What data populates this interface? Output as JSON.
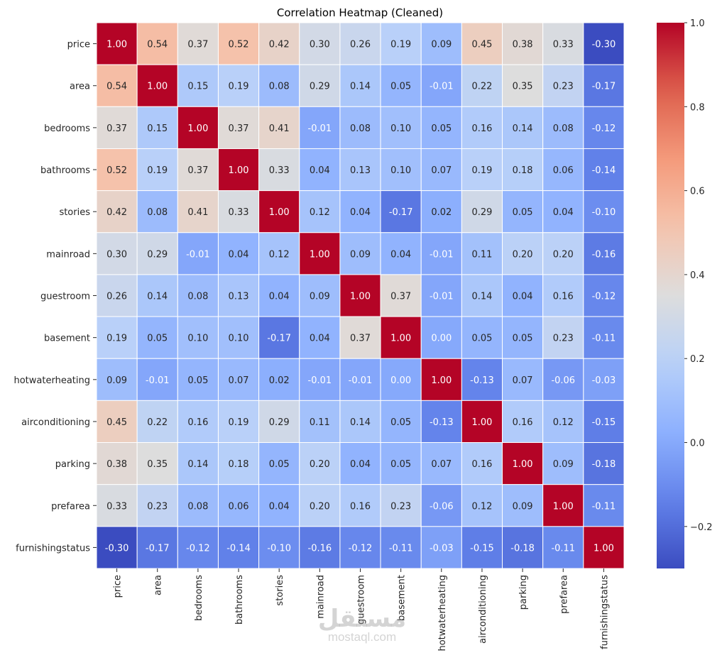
{
  "chart_data": {
    "type": "heatmap",
    "title": "Correlation Heatmap (Cleaned)",
    "xlabel": "",
    "ylabel": "",
    "colormap": "coolwarm",
    "value_range": [
      -0.3,
      1.0
    ],
    "colorbar": {
      "ticks": [
        1.0,
        0.8,
        0.6,
        0.4,
        0.2,
        0.0,
        -0.2
      ],
      "tick_labels": [
        "1.0",
        "0.8",
        "0.6",
        "0.4",
        "0.2",
        "0.0",
        "−0.2"
      ],
      "placement": "right"
    },
    "annotation_format": "2 decimals",
    "x_labels": [
      "price",
      "area",
      "bedrooms",
      "bathrooms",
      "stories",
      "mainroad",
      "guestroom",
      "basement",
      "hotwaterheating",
      "airconditioning",
      "parking",
      "prefarea",
      "furnishingstatus"
    ],
    "y_labels": [
      "price",
      "area",
      "bedrooms",
      "bathrooms",
      "stories",
      "mainroad",
      "guestroom",
      "basement",
      "hotwaterheating",
      "airconditioning",
      "parking",
      "prefarea",
      "furnishingstatus"
    ],
    "matrix": [
      [
        1.0,
        0.54,
        0.37,
        0.52,
        0.42,
        0.3,
        0.26,
        0.19,
        0.09,
        0.45,
        0.38,
        0.33,
        -0.3
      ],
      [
        0.54,
        1.0,
        0.15,
        0.19,
        0.08,
        0.29,
        0.14,
        0.05,
        -0.01,
        0.22,
        0.35,
        0.23,
        -0.17
      ],
      [
        0.37,
        0.15,
        1.0,
        0.37,
        0.41,
        -0.01,
        0.08,
        0.1,
        0.05,
        0.16,
        0.14,
        0.08,
        -0.12
      ],
      [
        0.52,
        0.19,
        0.37,
        1.0,
        0.33,
        0.04,
        0.13,
        0.1,
        0.07,
        0.19,
        0.18,
        0.06,
        -0.14
      ],
      [
        0.42,
        0.08,
        0.41,
        0.33,
        1.0,
        0.12,
        0.04,
        -0.17,
        0.02,
        0.29,
        0.05,
        0.04,
        -0.1
      ],
      [
        0.3,
        0.29,
        -0.01,
        0.04,
        0.12,
        1.0,
        0.09,
        0.04,
        -0.01,
        0.11,
        0.2,
        0.2,
        -0.16
      ],
      [
        0.26,
        0.14,
        0.08,
        0.13,
        0.04,
        0.09,
        1.0,
        0.37,
        -0.01,
        0.14,
        0.04,
        0.16,
        -0.12
      ],
      [
        0.19,
        0.05,
        0.1,
        0.1,
        -0.17,
        0.04,
        0.37,
        1.0,
        0.0,
        0.05,
        0.05,
        0.23,
        -0.11
      ],
      [
        0.09,
        -0.01,
        0.05,
        0.07,
        0.02,
        -0.01,
        -0.01,
        0.0,
        1.0,
        -0.13,
        0.07,
        -0.06,
        -0.03
      ],
      [
        0.45,
        0.22,
        0.16,
        0.19,
        0.29,
        0.11,
        0.14,
        0.05,
        -0.13,
        1.0,
        0.16,
        0.12,
        -0.15
      ],
      [
        0.38,
        0.35,
        0.14,
        0.18,
        0.05,
        0.2,
        0.04,
        0.05,
        0.07,
        0.16,
        1.0,
        0.09,
        -0.18
      ],
      [
        0.33,
        0.23,
        0.08,
        0.06,
        0.04,
        0.2,
        0.16,
        0.23,
        -0.06,
        0.12,
        0.09,
        1.0,
        -0.11
      ],
      [
        -0.3,
        -0.17,
        -0.12,
        -0.14,
        -0.1,
        -0.16,
        -0.12,
        -0.11,
        -0.03,
        -0.15,
        -0.18,
        -0.11,
        1.0
      ]
    ],
    "grid": false,
    "cell_separator_color": "#ffffff"
  },
  "watermark": {
    "arabic": "مستقل",
    "latin": "mostaql.com"
  }
}
